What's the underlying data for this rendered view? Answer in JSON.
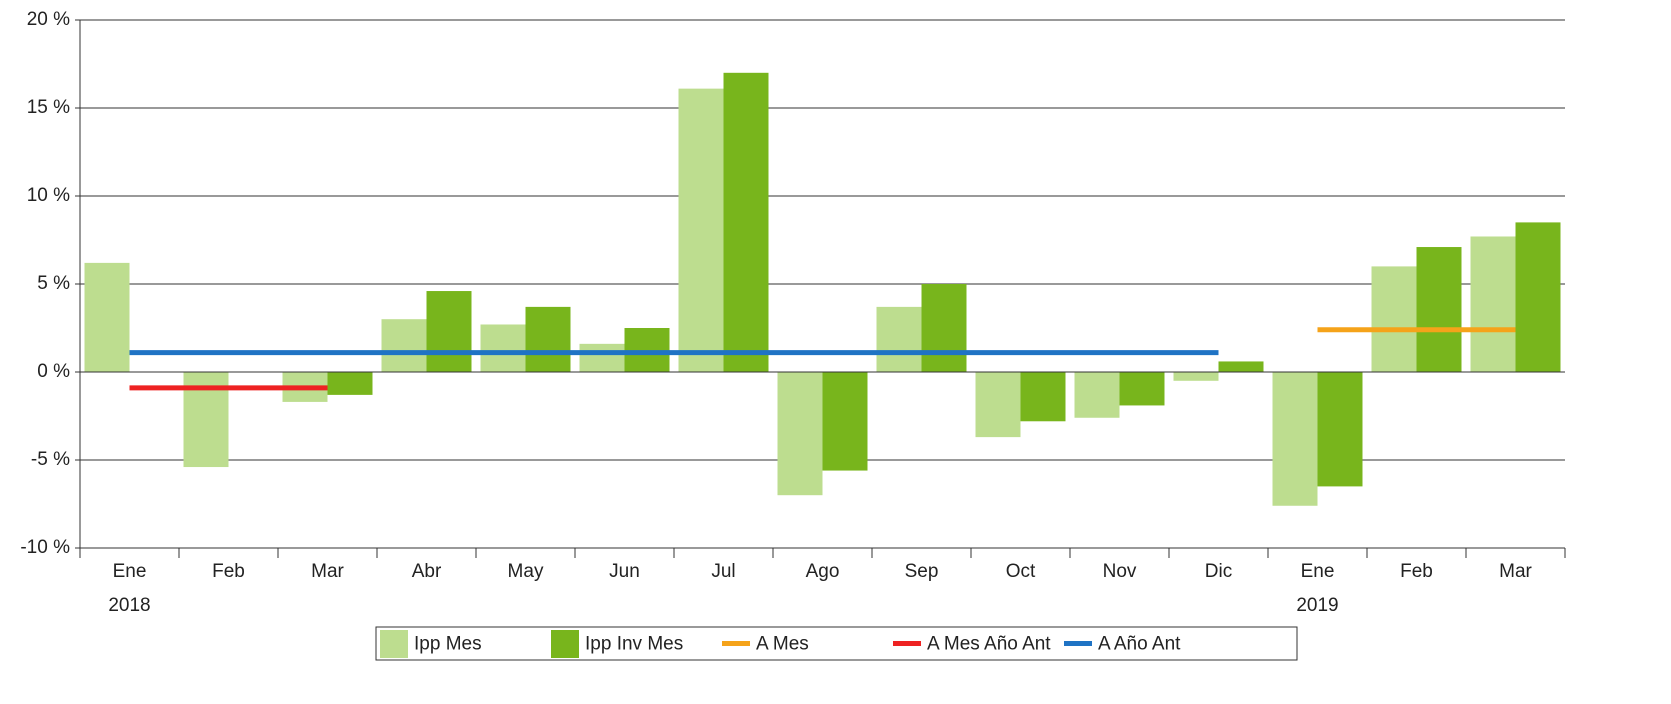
{
  "chart_data": {
    "type": "bar",
    "categories": [
      "Ene",
      "Feb",
      "Mar",
      "Abr",
      "May",
      "Jun",
      "Jul",
      "Ago",
      "Sep",
      "Oct",
      "Nov",
      "Dic",
      "Ene",
      "Feb",
      "Mar"
    ],
    "year_labels": [
      "2018",
      null,
      null,
      null,
      null,
      null,
      null,
      null,
      null,
      null,
      null,
      null,
      "2019",
      null,
      null
    ],
    "series": [
      {
        "name": "Ipp Mes",
        "type": "bar",
        "color": "#bddd8f",
        "values": [
          6.2,
          -5.4,
          -1.7,
          3.0,
          2.7,
          1.6,
          16.1,
          -7.0,
          3.7,
          -3.7,
          -2.6,
          -0.5,
          -7.6,
          6.0,
          7.7
        ]
      },
      {
        "name": "Ipp Inv Mes",
        "type": "bar",
        "color": "#78b51c",
        "values": [
          null,
          null,
          -1.3,
          4.6,
          3.7,
          2.5,
          17.0,
          -5.6,
          5.0,
          -2.8,
          -1.9,
          0.6,
          -6.5,
          7.1,
          8.5
        ]
      },
      {
        "name": "A Mes",
        "type": "line",
        "color": "#f5a31a",
        "values": [
          null,
          null,
          null,
          null,
          null,
          null,
          null,
          null,
          null,
          null,
          null,
          null,
          2.4,
          2.4,
          2.4
        ]
      },
      {
        "name": "A Mes Año Ant",
        "type": "line",
        "color": "#ee2222",
        "values": [
          -0.9,
          -0.9,
          -0.9,
          null,
          null,
          null,
          null,
          null,
          null,
          null,
          null,
          null,
          null,
          null,
          null
        ]
      },
      {
        "name": "A Año Ant",
        "type": "line",
        "color": "#1f73c4",
        "values": [
          1.1,
          1.1,
          1.1,
          1.1,
          1.1,
          1.1,
          1.1,
          1.1,
          1.1,
          1.1,
          1.1,
          1.1,
          null,
          null,
          null
        ]
      }
    ],
    "ylim": [
      -10,
      20
    ],
    "yticks": [
      {
        "value": -10,
        "label": "-10 %"
      },
      {
        "value": -5,
        "label": "-5 %"
      },
      {
        "value": 0,
        "label": "0 %"
      },
      {
        "value": 5,
        "label": "5 %"
      },
      {
        "value": 10,
        "label": "10 %"
      },
      {
        "value": 15,
        "label": "15 %"
      },
      {
        "value": 20,
        "label": "20 %"
      }
    ],
    "grid": true,
    "legend": "bottom"
  }
}
